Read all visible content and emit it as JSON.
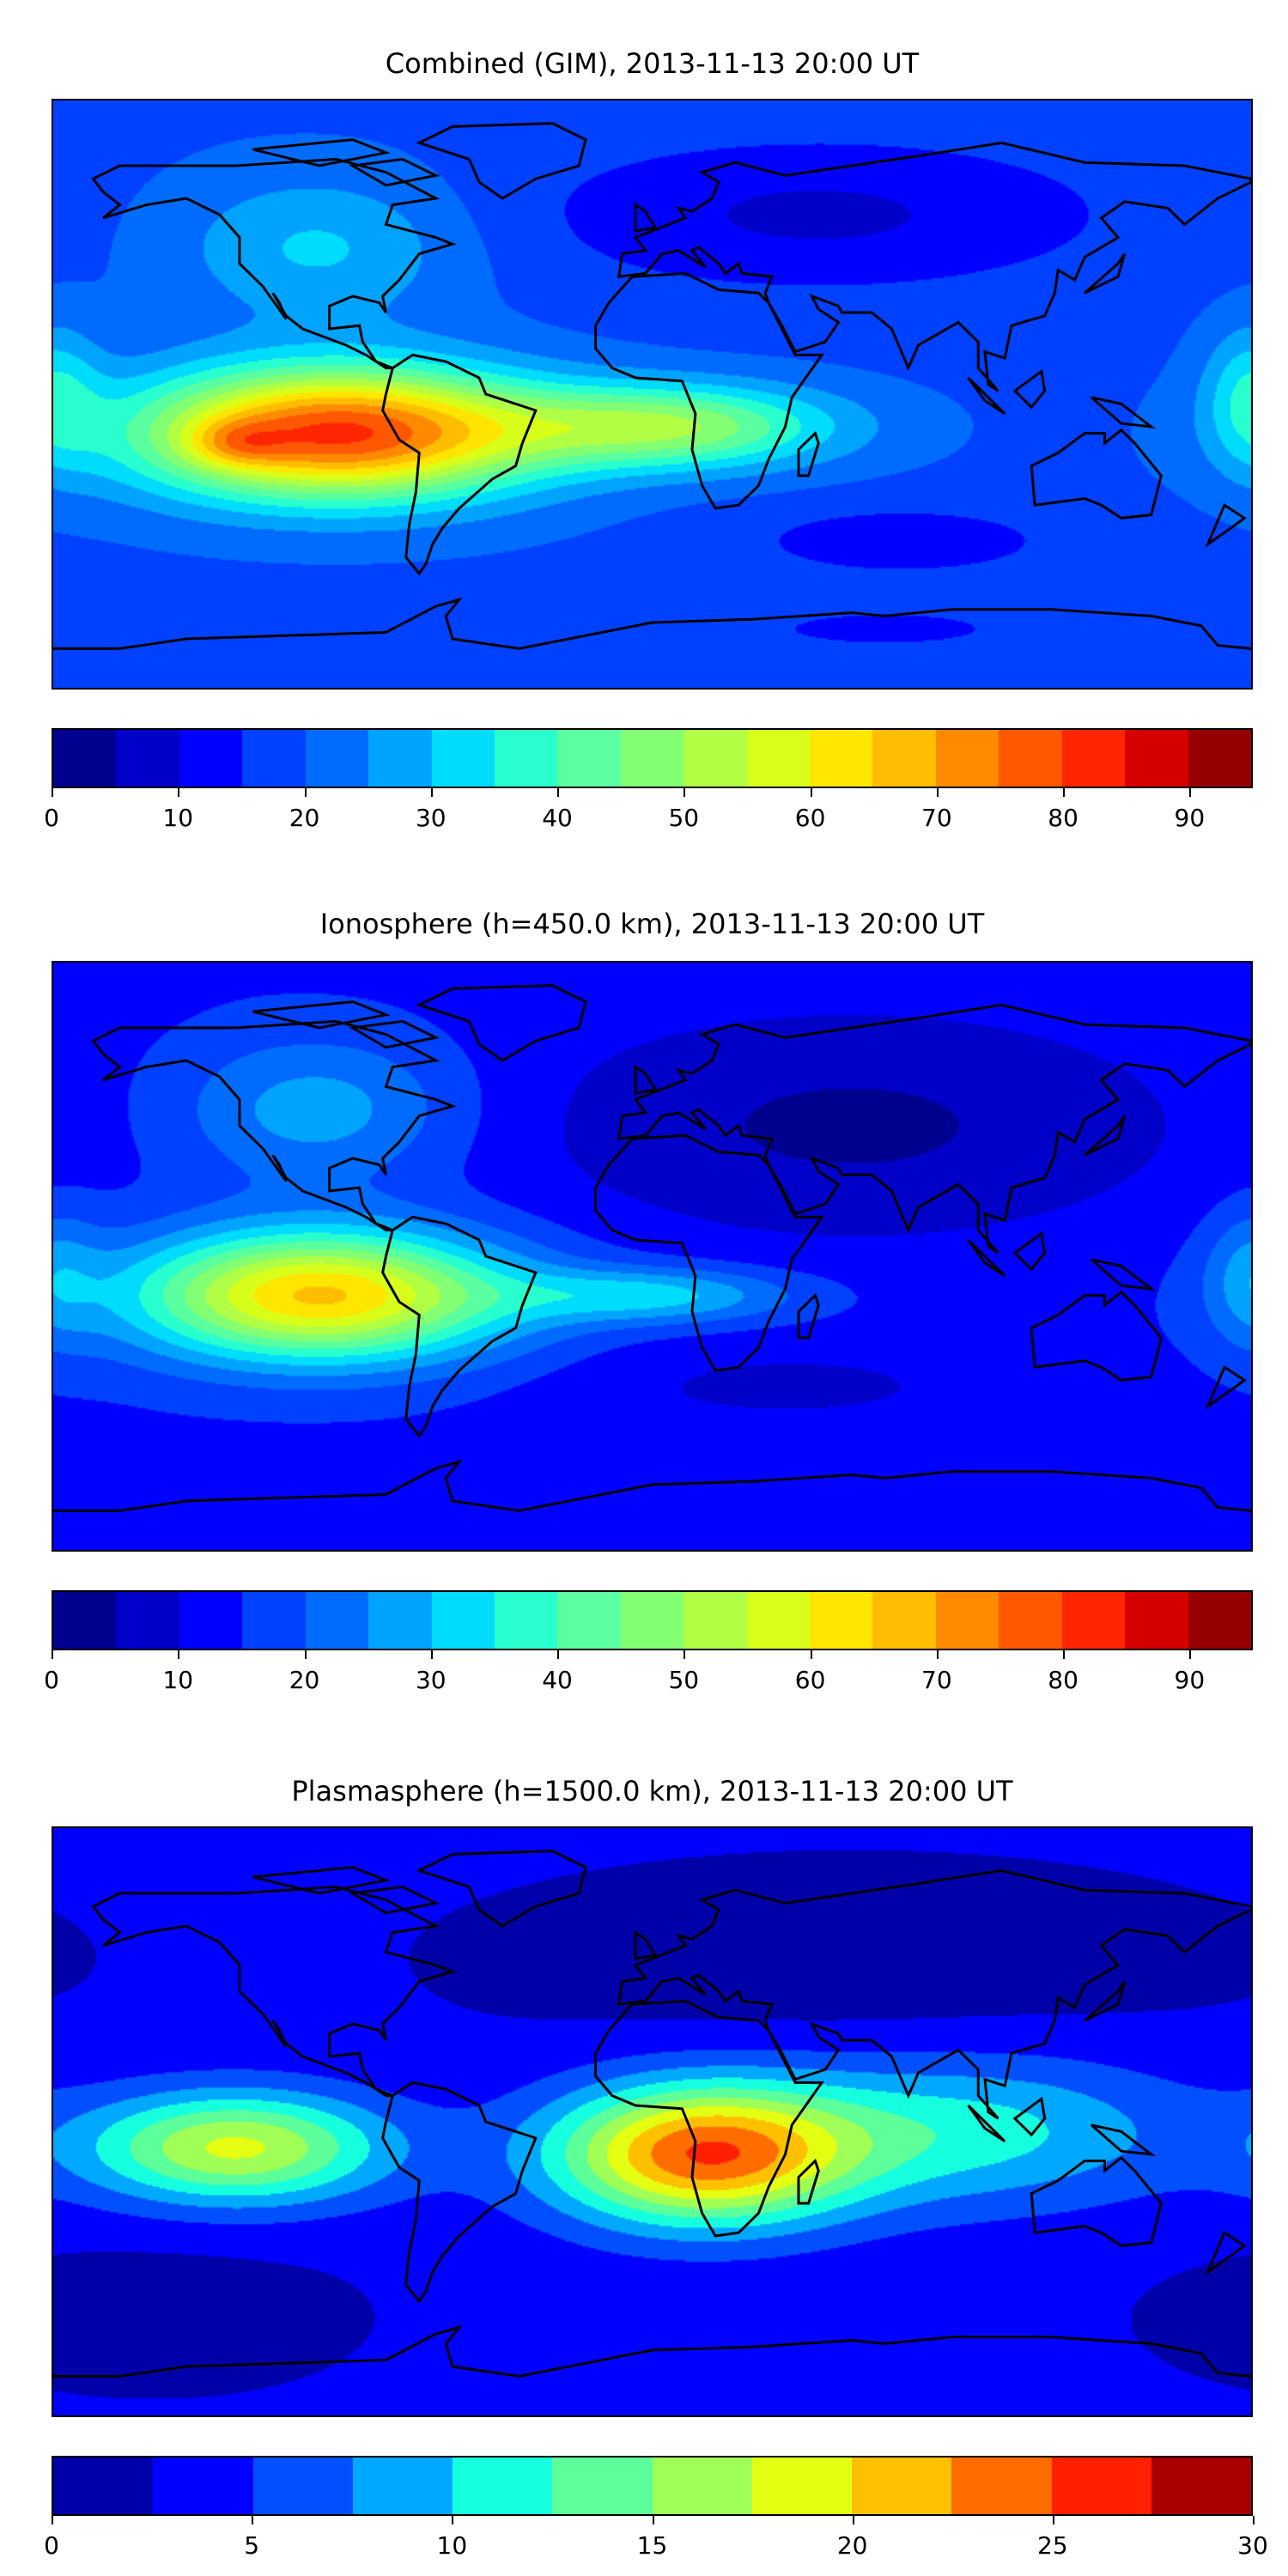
{
  "chart_data": [
    {
      "type": "heatmap",
      "subtype": "filled-contour-map",
      "title": "Combined (GIM), 2013-11-13 20:00 UT",
      "projection": "plate-carree",
      "lon_range": [
        -180,
        180
      ],
      "lat_range": [
        -90,
        90
      ],
      "levels": [
        0,
        5,
        10,
        15,
        20,
        25,
        30,
        35,
        40,
        45,
        50,
        55,
        60,
        65,
        70,
        75,
        80,
        85,
        90,
        95
      ],
      "colors": [
        "#00008f",
        "#0000c8",
        "#0000ff",
        "#0040ff",
        "#006cff",
        "#00a4ff",
        "#00dcfe",
        "#29ffce",
        "#5affa0",
        "#83ff73",
        "#b0ff45",
        "#d8ff1a",
        "#ffe600",
        "#ffbd00",
        "#ff8a00",
        "#ff5800",
        "#ff2500",
        "#d40000",
        "#960000"
      ],
      "colorbar_ticks": [
        "0",
        "10",
        "20",
        "30",
        "40",
        "50",
        "60",
        "70",
        "80",
        "90"
      ],
      "colorbar_tick_values": [
        0,
        10,
        20,
        30,
        40,
        50,
        60,
        70,
        80,
        90
      ],
      "colorbar_range": [
        0,
        95
      ],
      "field": {
        "base": 19,
        "components": [
          {
            "lon": -95,
            "lat": -12,
            "amp": 62,
            "slon": 42,
            "slat": 14
          },
          {
            "lon": -125,
            "lat": -15,
            "amp": 12,
            "slon": 10,
            "slat": 5
          },
          {
            "lon": 5,
            "lat": -10,
            "amp": 30,
            "slon": 35,
            "slat": 9
          },
          {
            "lon": -100,
            "lat": 45,
            "amp": 12,
            "slon": 30,
            "slat": 16
          },
          {
            "lon": 180,
            "lat": 0,
            "amp": 14,
            "slon": 10,
            "slat": 15
          },
          {
            "lon": 50,
            "lat": 55,
            "amp": -10,
            "slon": 60,
            "slat": 16
          },
          {
            "lon": 75,
            "lat": -45,
            "amp": -7,
            "slon": 35,
            "slat": 8
          },
          {
            "lon": 70,
            "lat": -72,
            "amp": -5,
            "slon": 40,
            "slat": 6
          }
        ]
      }
    },
    {
      "type": "heatmap",
      "subtype": "filled-contour-map",
      "title": "Ionosphere  (h=450.0 km), 2013-11-13 20:00 UT",
      "projection": "plate-carree",
      "lon_range": [
        -180,
        180
      ],
      "lat_range": [
        -90,
        90
      ],
      "levels": [
        0,
        5,
        10,
        15,
        20,
        25,
        30,
        35,
        40,
        45,
        50,
        55,
        60,
        65,
        70,
        75,
        80,
        85,
        90,
        95
      ],
      "colors": [
        "#00008f",
        "#0000c8",
        "#0000ff",
        "#0040ff",
        "#006cff",
        "#00a4ff",
        "#00dcfe",
        "#29ffce",
        "#5affa0",
        "#83ff73",
        "#b0ff45",
        "#d8ff1a",
        "#ffe600",
        "#ffbd00",
        "#ff8a00",
        "#ff5800",
        "#ff2500",
        "#d40000",
        "#960000"
      ],
      "colorbar_ticks": [
        "0",
        "10",
        "20",
        "30",
        "40",
        "50",
        "60",
        "70",
        "80",
        "90"
      ],
      "colorbar_tick_values": [
        0,
        10,
        20,
        30,
        40,
        50,
        60,
        70,
        80,
        90
      ],
      "colorbar_range": [
        0,
        95
      ],
      "field": {
        "base": 14,
        "components": [
          {
            "lon": -100,
            "lat": -12,
            "amp": 52,
            "slon": 40,
            "slat": 14
          },
          {
            "lon": 0,
            "lat": -12,
            "amp": 18,
            "slon": 30,
            "slat": 6
          },
          {
            "lon": -100,
            "lat": 45,
            "amp": 14,
            "slon": 30,
            "slat": 16
          },
          {
            "lon": 180,
            "lat": -5,
            "amp": 10,
            "slon": 10,
            "slat": 15
          },
          {
            "lon": 60,
            "lat": 40,
            "amp": -10,
            "slon": 70,
            "slat": 25
          },
          {
            "lon": 40,
            "lat": -40,
            "amp": -5,
            "slon": 50,
            "slat": 10
          }
        ]
      }
    },
    {
      "type": "heatmap",
      "subtype": "filled-contour-map",
      "title": "Plasmasphere (h=1500.0 km), 2013-11-13 20:00 UT",
      "projection": "plate-carree",
      "lon_range": [
        -180,
        180
      ],
      "lat_range": [
        -90,
        90
      ],
      "levels": [
        0,
        2.5,
        5,
        7.5,
        10,
        12.5,
        15,
        17.5,
        20,
        22.5,
        25,
        27.5,
        30
      ],
      "colors": [
        "#0000a8",
        "#0000ff",
        "#0050ff",
        "#00a8ff",
        "#16ffde",
        "#5cff9a",
        "#a0ff56",
        "#e4ff12",
        "#ffc000",
        "#ff6c00",
        "#ff2000",
        "#a80000"
      ],
      "colorbar_ticks": [
        "0",
        "5",
        "10",
        "15",
        "20",
        "25",
        "30"
      ],
      "colorbar_tick_values": [
        0,
        5,
        10,
        15,
        20,
        25,
        30
      ],
      "colorbar_range": [
        0,
        30
      ],
      "field": {
        "base": 3,
        "components": [
          {
            "lon": 15,
            "lat": -10,
            "amp": 21,
            "slon": 32,
            "slat": 15
          },
          {
            "lon": -125,
            "lat": -8,
            "amp": 15,
            "slon": 32,
            "slat": 12
          },
          {
            "lon": 95,
            "lat": -3,
            "amp": 8,
            "slon": 45,
            "slat": 16
          },
          {
            "lon": 60,
            "lat": 50,
            "amp": -2,
            "slon": 80,
            "slat": 20
          },
          {
            "lon": -150,
            "lat": -60,
            "amp": -2,
            "slon": 40,
            "slat": 15
          }
        ]
      }
    }
  ]
}
